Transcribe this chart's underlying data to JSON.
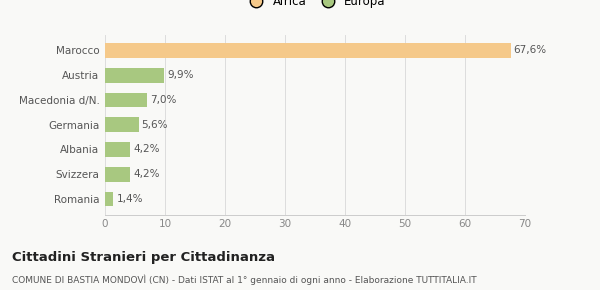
{
  "categories": [
    "Romania",
    "Svizzera",
    "Albania",
    "Germania",
    "Macedonia d/N.",
    "Austria",
    "Marocco"
  ],
  "values": [
    1.4,
    4.2,
    4.2,
    5.6,
    7.0,
    9.9,
    67.6
  ],
  "colors": [
    "#a8c880",
    "#a8c880",
    "#a8c880",
    "#a8c880",
    "#a8c880",
    "#a8c880",
    "#f5c98a"
  ],
  "labels": [
    "1,4%",
    "4,2%",
    "4,2%",
    "5,6%",
    "7,0%",
    "9,9%",
    "67,6%"
  ],
  "legend": [
    {
      "label": "Africa",
      "color": "#f5c98a"
    },
    {
      "label": "Europa",
      "color": "#a8c880"
    }
  ],
  "xlim": [
    0,
    70
  ],
  "xticks": [
    0,
    10,
    20,
    30,
    40,
    50,
    60,
    70
  ],
  "title": "Cittadini Stranieri per Cittadinanza",
  "subtitle": "COMUNE DI BASTIA MONDOVÌ (CN) - Dati ISTAT al 1° gennaio di ogni anno - Elaborazione TUTTITALIA.IT",
  "background_color": "#f9f9f7",
  "bar_height": 0.6
}
